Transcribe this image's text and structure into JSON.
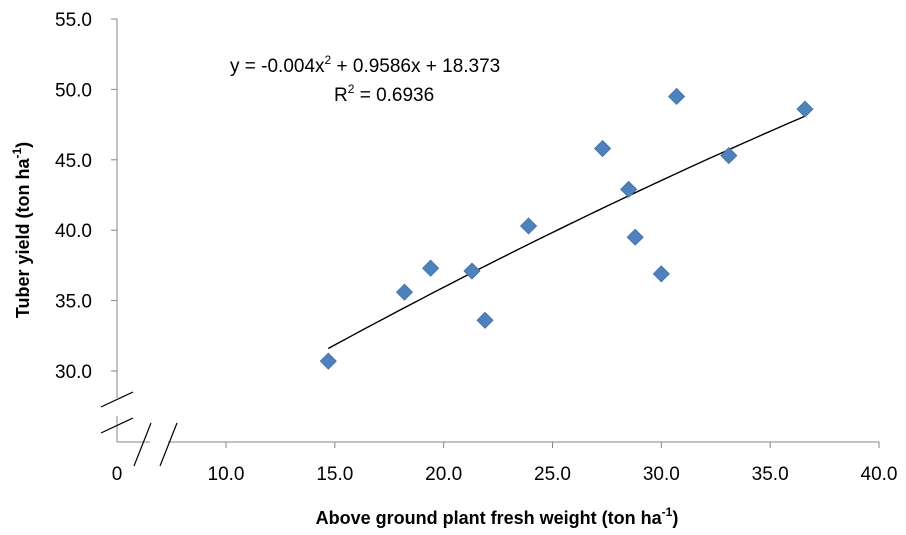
{
  "chart_data": {
    "type": "scatter",
    "xlabel": {
      "main": "Above ground plant fresh weight (ton ha",
      "sup": "-1",
      "end": ")"
    },
    "ylabel": {
      "main": "Tuber yield (ton ha",
      "sup": "-1",
      "end": ")"
    },
    "x_break_label": "0",
    "x_ticks": [
      "10.0",
      "15.0",
      "20.0",
      "25.0",
      "30.0",
      "35.0",
      "40.0"
    ],
    "y_ticks": [
      "30.0",
      "35.0",
      "40.0",
      "45.0",
      "50.0",
      "55.0"
    ],
    "xlim": [
      10,
      40
    ],
    "ylim": [
      30,
      55
    ],
    "axis_breaks": true,
    "grid": false,
    "marker_color": "#4F81BD",
    "trend_color": "#000000",
    "points": [
      {
        "x": 14.7,
        "y": 30.7
      },
      {
        "x": 18.2,
        "y": 35.6
      },
      {
        "x": 19.4,
        "y": 37.3
      },
      {
        "x": 21.3,
        "y": 37.1
      },
      {
        "x": 21.9,
        "y": 33.6
      },
      {
        "x": 23.9,
        "y": 40.3
      },
      {
        "x": 27.3,
        "y": 45.8
      },
      {
        "x": 28.5,
        "y": 42.9
      },
      {
        "x": 28.8,
        "y": 39.5
      },
      {
        "x": 30.0,
        "y": 36.9
      },
      {
        "x": 30.7,
        "y": 49.5
      },
      {
        "x": 33.1,
        "y": 45.3
      },
      {
        "x": 36.6,
        "y": 48.6
      }
    ],
    "trendline": {
      "type": "polynomial",
      "coefficients": {
        "a": -0.004,
        "b": 0.9586,
        "c": 18.373
      },
      "x_range": [
        14.7,
        36.6
      ]
    },
    "equation": {
      "part1": "y = -0.004x",
      "sup": "2",
      "part2": " + 0.9586x + 18.373"
    },
    "r_squared": {
      "part1": "R",
      "sup": "2",
      "part2": " = 0.6936"
    }
  }
}
